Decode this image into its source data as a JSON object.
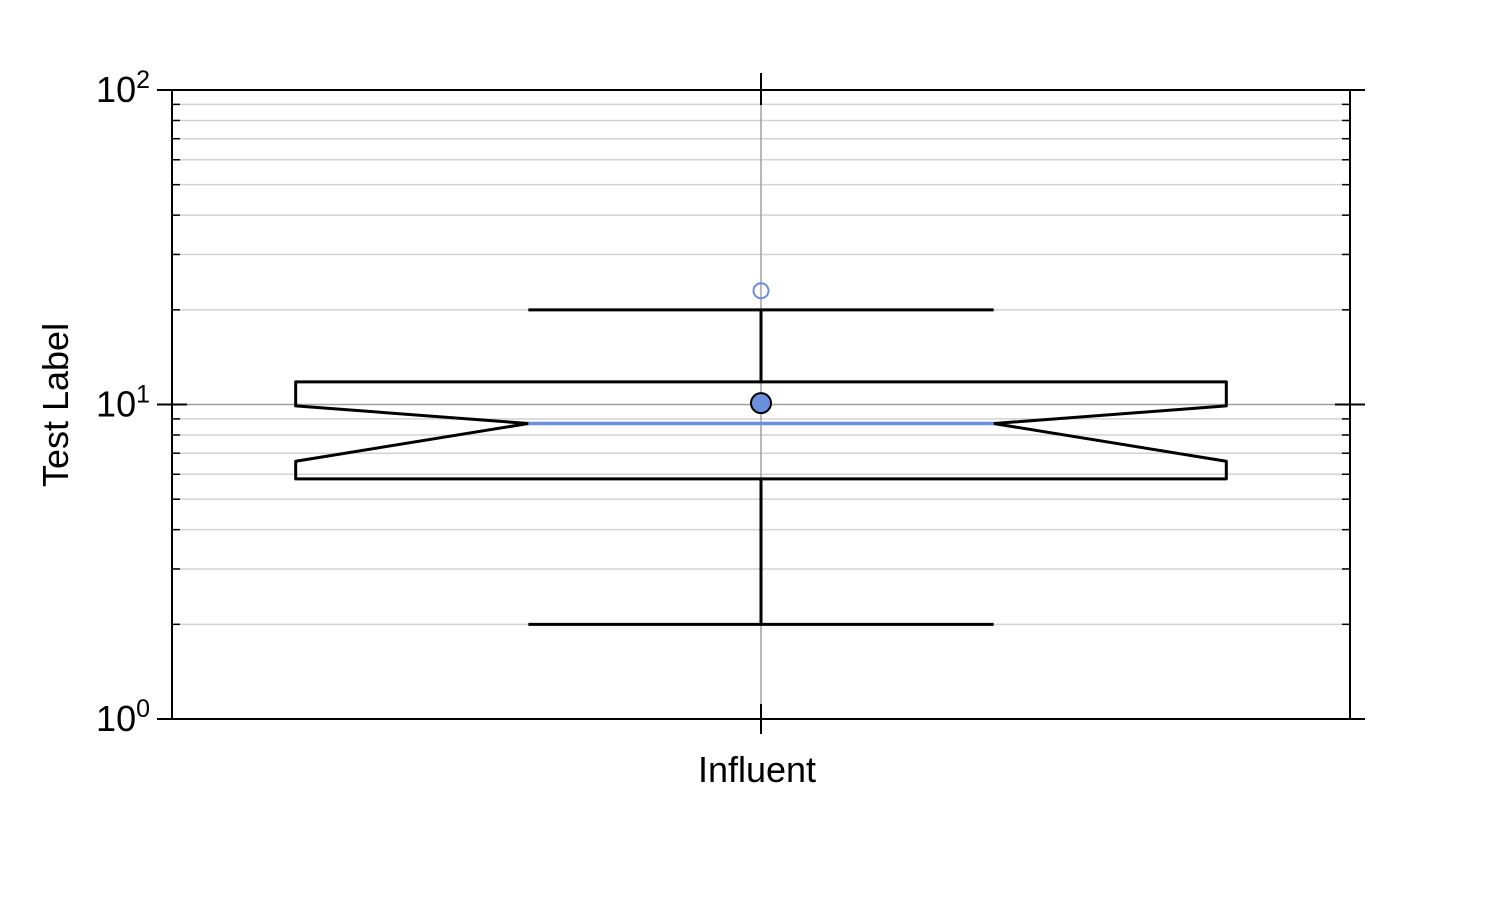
{
  "chart_data": {
    "type": "boxplot",
    "yscale": "log",
    "ylim": [
      1,
      100
    ],
    "ylabel": "Test Label",
    "categories": [
      "Influent"
    ],
    "yticks": [
      {
        "value": 1,
        "base": "10",
        "exp": "0"
      },
      {
        "value": 10,
        "base": "10",
        "exp": "1"
      },
      {
        "value": 100,
        "base": "10",
        "exp": "2"
      }
    ],
    "boxes": [
      {
        "category": "Influent",
        "whisker_low": 2.0,
        "q1": 5.8,
        "notch_low": 6.6,
        "median": 8.7,
        "notch_high": 9.9,
        "q3": 11.8,
        "whisker_high": 20.0,
        "mean": 10.1,
        "outliers": [
          23.0
        ]
      }
    ],
    "grid": true,
    "colors": {
      "median": "#6a8fdc",
      "mean_fill": "#6a8fdc",
      "outlier": "#6a8fdc",
      "box": "#000000",
      "grid_minor": "#d3d3d3",
      "grid_major": "#a0a0a0"
    }
  }
}
